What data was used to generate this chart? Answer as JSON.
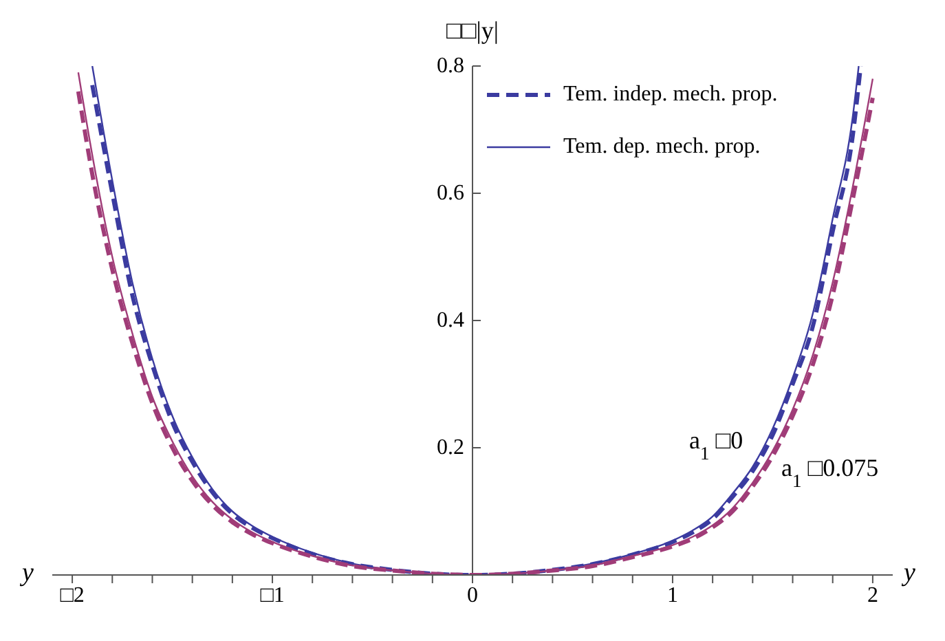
{
  "chart_data": {
    "type": "line",
    "ylabel": "□□|y|",
    "xlabel": "y",
    "legend": "top right",
    "xlim": [
      -2.1,
      2.1
    ],
    "ylim": [
      0,
      0.8
    ],
    "xticks": [
      {
        "value": -2,
        "label": "□2"
      },
      {
        "value": -1.8,
        "label": null
      },
      {
        "value": -1.6,
        "label": null
      },
      {
        "value": -1.4,
        "label": null
      },
      {
        "value": -1.2,
        "label": null
      },
      {
        "value": -1,
        "label": "□1"
      },
      {
        "value": -0.8,
        "label": null
      },
      {
        "value": -0.6,
        "label": null
      },
      {
        "value": -0.4,
        "label": null
      },
      {
        "value": -0.2,
        "label": null
      },
      0,
      {
        "value": 0.2,
        "label": null
      },
      {
        "value": 0.4,
        "label": null
      },
      {
        "value": 0.6,
        "label": null
      },
      {
        "value": 0.8,
        "label": null
      },
      1,
      {
        "value": 1.2,
        "label": null
      },
      {
        "value": 1.4,
        "label": null
      },
      {
        "value": 1.6,
        "label": null
      },
      {
        "value": 1.8,
        "label": null
      },
      2
    ],
    "yticks": [
      0.2,
      0.4,
      0.6,
      0.8
    ],
    "annotations": [
      "a$_{1}$ □0",
      "a$_{1}$ □0.075"
    ],
    "series": [
      {
        "name": "Tem. indep. mech. prop.",
        "color": "#3b3ba0",
        "line_style": "dashed",
        "x": [
          -1.9,
          -1.8,
          -1.7,
          -1.6,
          -1.5,
          -1.4,
          -1.3,
          -1.2,
          -1.1,
          -1,
          -0.8,
          -0.6,
          -0.4,
          -0.2,
          0,
          0.2,
          0.4,
          0.6,
          0.8,
          1,
          1.1,
          1.2,
          1.3,
          1.4,
          1.5,
          1.6,
          1.7,
          1.8,
          1.9,
          1.94
        ],
        "values": [
          0.77,
          0.6,
          0.44,
          0.33,
          0.24,
          0.178,
          0.13,
          0.096,
          0.074,
          0.058,
          0.033,
          0.017,
          0.008,
          0.002,
          0,
          0.002,
          0.008,
          0.017,
          0.032,
          0.052,
          0.067,
          0.088,
          0.123,
          0.163,
          0.22,
          0.3,
          0.39,
          0.54,
          0.69,
          0.8
        ]
      },
      {
        "name": "Tem. dep. mech. prop.",
        "color": "#3b3ba0",
        "line_style": "solid",
        "x": [
          -1.9,
          -1.8,
          -1.7,
          -1.6,
          -1.5,
          -1.4,
          -1.3,
          -1.2,
          -1.1,
          -1,
          -0.8,
          -0.6,
          -0.4,
          -0.2,
          0,
          0.2,
          0.4,
          0.6,
          0.8,
          1,
          1.1,
          1.2,
          1.3,
          1.4,
          1.5,
          1.6,
          1.7,
          1.8,
          1.9,
          1.93
        ],
        "values": [
          0.8,
          0.62,
          0.46,
          0.34,
          0.25,
          0.185,
          0.135,
          0.1,
          0.077,
          0.06,
          0.035,
          0.018,
          0.008,
          0.002,
          0,
          0.002,
          0.008,
          0.018,
          0.033,
          0.054,
          0.07,
          0.092,
          0.128,
          0.17,
          0.23,
          0.31,
          0.41,
          0.56,
          0.72,
          0.8
        ]
      },
      {
        "color": "#a03c78",
        "line_style": "dashed",
        "x": [
          -1.97,
          -1.9,
          -1.8,
          -1.7,
          -1.6,
          -1.5,
          -1.4,
          -1.3,
          -1.2,
          -1.1,
          -1,
          -0.8,
          -0.6,
          -0.4,
          -0.2,
          0,
          0.2,
          0.4,
          0.6,
          0.8,
          1,
          1.1,
          1.2,
          1.3,
          1.4,
          1.5,
          1.6,
          1.7,
          1.8,
          1.9,
          2
        ],
        "values": [
          0.76,
          0.63,
          0.48,
          0.365,
          0.27,
          0.2,
          0.148,
          0.11,
          0.083,
          0.064,
          0.05,
          0.029,
          0.014,
          0.007,
          0.002,
          0,
          0.002,
          0.007,
          0.014,
          0.028,
          0.045,
          0.057,
          0.075,
          0.1,
          0.139,
          0.187,
          0.25,
          0.33,
          0.44,
          0.59,
          0.75
        ]
      },
      {
        "color": "#a03c78",
        "line_style": "solid",
        "x": [
          -1.97,
          -1.9,
          -1.8,
          -1.7,
          -1.6,
          -1.5,
          -1.4,
          -1.3,
          -1.2,
          -1.1,
          -1,
          -0.8,
          -0.6,
          -0.4,
          -0.2,
          0,
          0.2,
          0.4,
          0.6,
          0.8,
          1,
          1.1,
          1.2,
          1.3,
          1.4,
          1.5,
          1.6,
          1.7,
          1.8,
          1.9,
          2
        ],
        "values": [
          0.79,
          0.66,
          0.5,
          0.38,
          0.28,
          0.21,
          0.155,
          0.115,
          0.087,
          0.067,
          0.052,
          0.03,
          0.015,
          0.007,
          0.002,
          0,
          0.002,
          0.007,
          0.015,
          0.03,
          0.047,
          0.06,
          0.078,
          0.105,
          0.145,
          0.195,
          0.26,
          0.345,
          0.46,
          0.61,
          0.78
        ]
      }
    ]
  }
}
